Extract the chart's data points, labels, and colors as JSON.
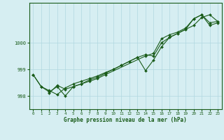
{
  "title": "Graphe pression niveau de la mer (hPa)",
  "background_color": "#d6eef2",
  "grid_color": "#b0d8e0",
  "line_color": "#1a5c1a",
  "marker_color": "#1a5c1a",
  "xlim": [
    -0.5,
    23.5
  ],
  "ylim": [
    997.5,
    1001.5
  ],
  "yticks": [
    998,
    999,
    1000
  ],
  "xticks": [
    0,
    1,
    2,
    3,
    4,
    5,
    6,
    7,
    8,
    9,
    10,
    11,
    12,
    13,
    14,
    15,
    16,
    17,
    18,
    19,
    20,
    21,
    22,
    23
  ],
  "series1": [
    [
      0,
      998.8
    ],
    [
      1,
      998.35
    ],
    [
      2,
      998.2
    ],
    [
      3,
      998.05
    ],
    [
      4,
      998.3
    ],
    [
      5,
      998.45
    ],
    [
      6,
      998.55
    ],
    [
      7,
      998.65
    ],
    [
      8,
      998.75
    ],
    [
      9,
      998.88
    ],
    [
      10,
      999.0
    ],
    [
      11,
      999.15
    ],
    [
      12,
      999.3
    ],
    [
      13,
      999.45
    ],
    [
      14,
      998.95
    ],
    [
      15,
      999.35
    ],
    [
      16,
      999.85
    ],
    [
      17,
      1000.2
    ],
    [
      18,
      1000.35
    ],
    [
      19,
      1000.5
    ],
    [
      20,
      1000.9
    ],
    [
      21,
      1001.05
    ],
    [
      22,
      1000.75
    ],
    [
      23,
      1000.8
    ]
  ],
  "series2": [
    [
      0,
      998.8
    ],
    [
      1,
      998.35
    ],
    [
      2,
      998.15
    ],
    [
      3,
      998.35
    ],
    [
      4,
      998.0
    ],
    [
      5,
      998.35
    ],
    [
      6,
      998.45
    ],
    [
      7,
      998.6
    ],
    [
      8,
      998.7
    ],
    [
      9,
      998.85
    ],
    [
      10,
      999.0
    ],
    [
      11,
      999.15
    ],
    [
      12,
      999.3
    ],
    [
      13,
      999.45
    ],
    [
      14,
      999.55
    ],
    [
      15,
      999.5
    ],
    [
      16,
      1000.0
    ],
    [
      17,
      1000.2
    ],
    [
      18,
      1000.35
    ],
    [
      19,
      1000.5
    ],
    [
      20,
      1000.65
    ],
    [
      21,
      1000.95
    ],
    [
      22,
      1001.05
    ],
    [
      23,
      1000.8
    ]
  ],
  "series3": [
    [
      2,
      998.1
    ],
    [
      3,
      998.4
    ],
    [
      4,
      998.25
    ],
    [
      5,
      998.35
    ],
    [
      6,
      998.45
    ],
    [
      7,
      998.55
    ],
    [
      8,
      998.65
    ],
    [
      9,
      998.8
    ],
    [
      14,
      999.5
    ],
    [
      15,
      999.6
    ],
    [
      16,
      1000.15
    ],
    [
      17,
      1000.3
    ],
    [
      18,
      1000.4
    ],
    [
      19,
      1000.55
    ],
    [
      20,
      1000.9
    ],
    [
      21,
      1001.05
    ],
    [
      22,
      1000.65
    ],
    [
      23,
      1000.75
    ]
  ]
}
